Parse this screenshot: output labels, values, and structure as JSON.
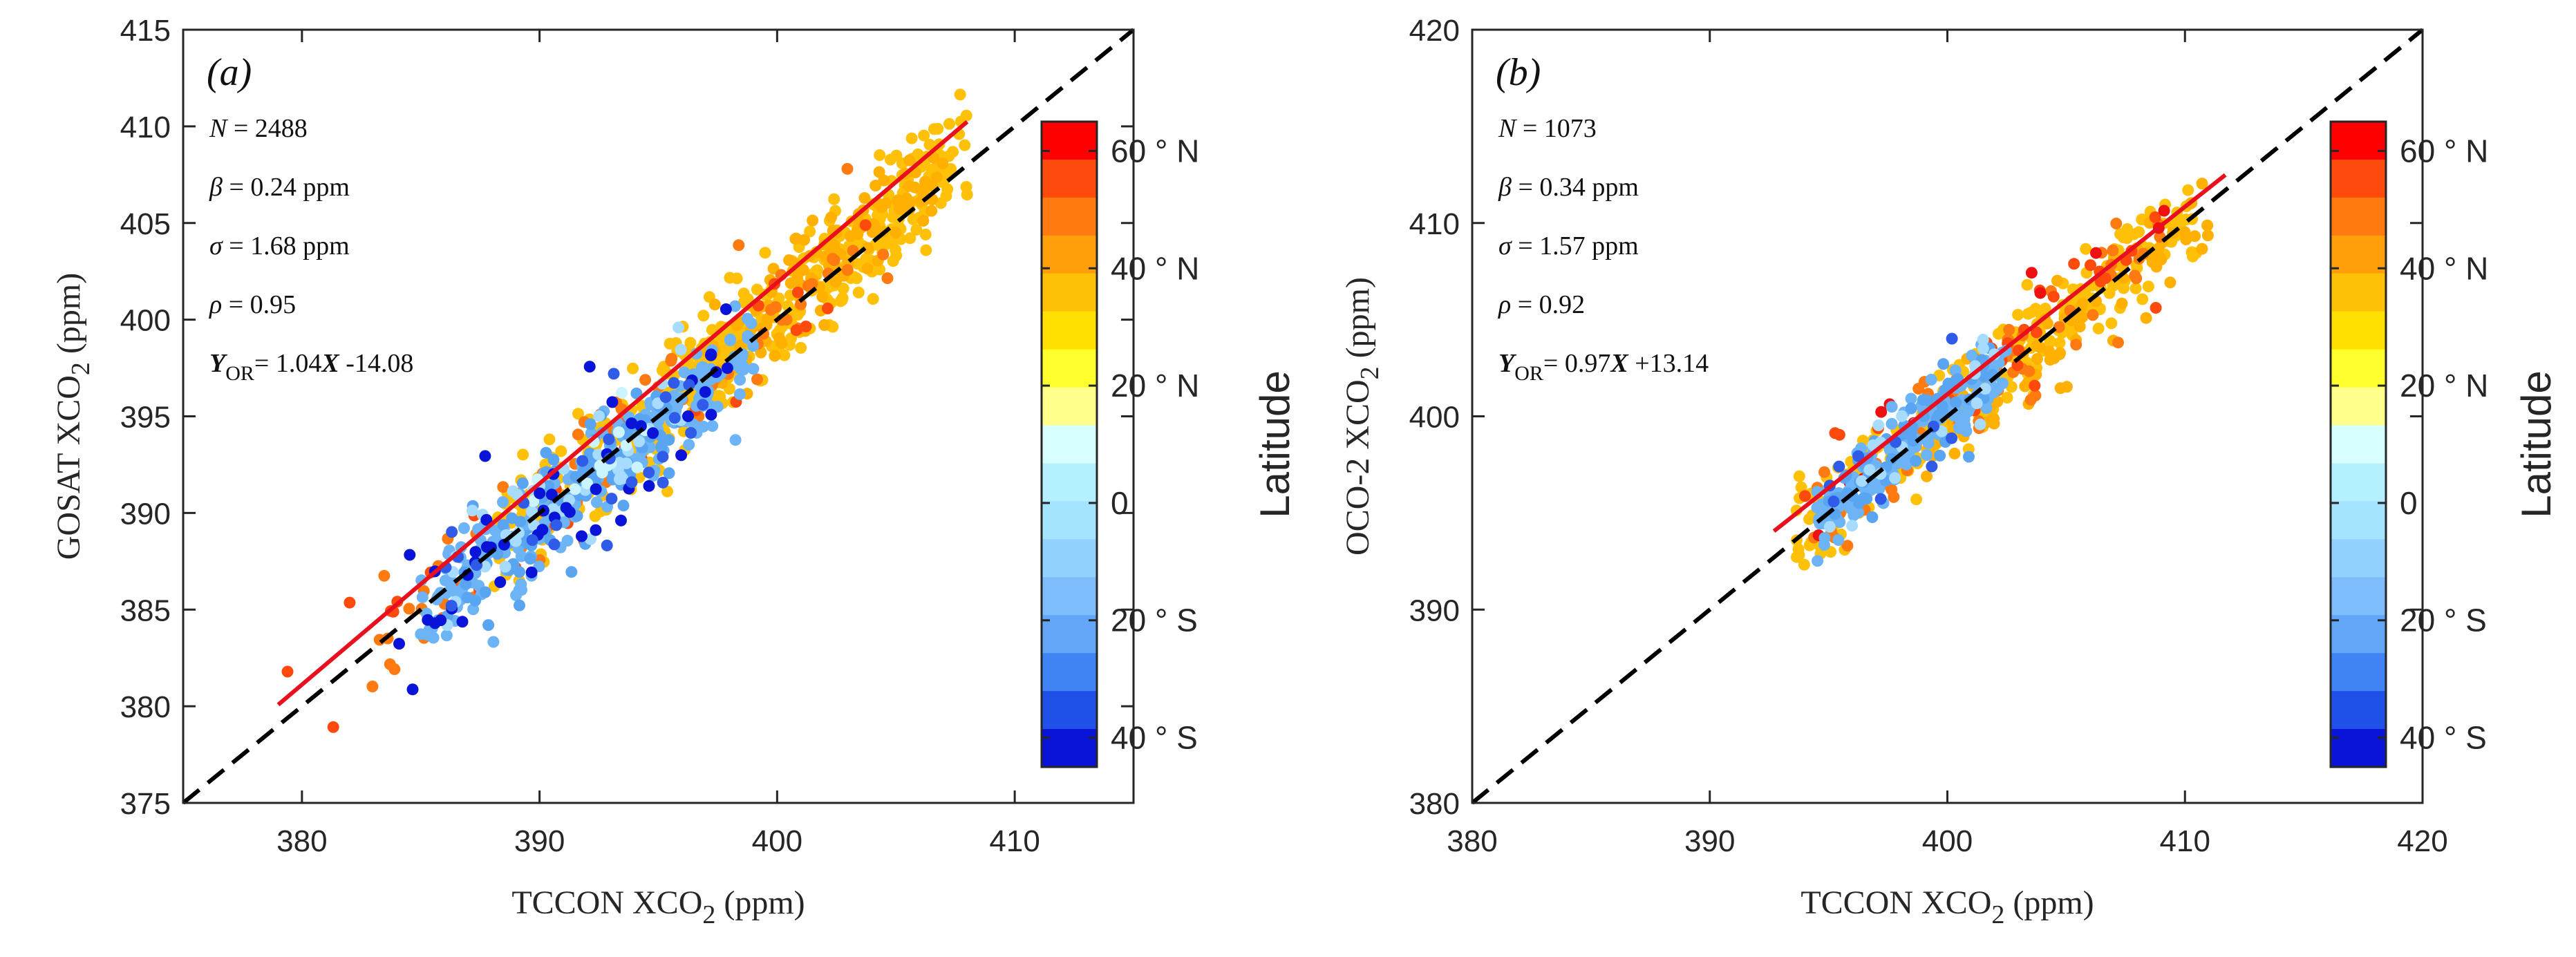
{
  "chart_data": [
    {
      "type": "scatter",
      "panel_label": "(a)",
      "xlabel": "TCCON XCO",
      "xlabel_sub": "2",
      "xlabel_unit": " (ppm)",
      "ylabel": "GOSAT XCO",
      "ylabel_sub": "2",
      "ylabel_unit": " (ppm)",
      "xlim": [
        375,
        415
      ],
      "ylim": [
        375,
        415
      ],
      "xticks": [
        380,
        390,
        400,
        410
      ],
      "yticks": [
        375,
        380,
        385,
        390,
        395,
        400,
        405,
        410,
        415
      ],
      "stats": {
        "n_sym": "N",
        "n_val": " = 2488",
        "beta_sym": "β",
        "beta_val": " = 0.24 ppm",
        "sigma_sym": "σ",
        "sigma_val": " = 1.68 ppm",
        "rho_sym": "ρ",
        "rho_val": " = 0.95",
        "y_sym": "Y",
        "y_sub": "OR",
        "y_eq_a": "= 1.04",
        "x_sym": "X",
        "y_eq_b": " -14.08"
      },
      "regression": {
        "slope": 1.04,
        "intercept": -14.08,
        "x_range": [
          379,
          408
        ],
        "color": "#e8101e"
      },
      "one_to_one_line": {
        "range": [
          375,
          415
        ],
        "color": "#000000"
      },
      "point_count": 2488,
      "approx_groups": [
        {
          "lat_band": "40-45 N",
          "x_range": [
            382,
            408
          ],
          "color": "#ffc107",
          "share": "majority, upper-right"
        },
        {
          "lat_band": "20-40 S",
          "x_range": [
            384,
            400
          ],
          "color": "#6cb4f5",
          "share": "central band"
        },
        {
          "lat_band": "40 S",
          "x_range": [
            384,
            398
          ],
          "color": "#0a14d8",
          "share": "lower-left"
        },
        {
          "lat_band": "45-60 N",
          "x_range": [
            379,
            404
          ],
          "color": "#ff6a13",
          "share": "scattered"
        }
      ]
    },
    {
      "type": "scatter",
      "panel_label": "(b)",
      "xlabel": "TCCON XCO",
      "xlabel_sub": "2",
      "xlabel_unit": " (ppm)",
      "ylabel": "OCO-2 XCO",
      "ylabel_sub": "2",
      "ylabel_unit": " (ppm)",
      "xlim": [
        380,
        420
      ],
      "ylim": [
        380,
        420
      ],
      "xticks": [
        380,
        390,
        400,
        410,
        420
      ],
      "yticks": [
        380,
        390,
        400,
        410,
        420
      ],
      "stats": {
        "n_sym": "N",
        "n_val": " = 1073",
        "beta_sym": "β",
        "beta_val": " = 0.34 ppm",
        "sigma_sym": "σ",
        "sigma_val": " = 1.57 ppm",
        "rho_sym": "ρ",
        "rho_val": " = 0.92",
        "y_sym": "Y",
        "y_sub": "OR",
        "y_eq_a": "= 0.97",
        "x_sym": "X",
        "y_eq_b": " +13.14"
      },
      "regression": {
        "slope": 0.97,
        "intercept": 13.14,
        "x_range": [
          392.7,
          411.7
        ],
        "color": "#e8101e"
      },
      "one_to_one_line": {
        "range": [
          380,
          420
        ],
        "color": "#000000"
      },
      "point_count": 1073,
      "approx_groups": [
        {
          "lat_band": "40-45 N",
          "x_range": [
            393,
            412
          ],
          "color": "#ffc107",
          "share": "majority"
        },
        {
          "lat_band": "20-40 S",
          "x_range": [
            394,
            403
          ],
          "color": "#6cb4f5",
          "share": "central cluster"
        },
        {
          "lat_band": "45-60 N",
          "x_range": [
            393,
            410
          ],
          "color": "#ff6a13",
          "share": "scattered"
        },
        {
          "lat_band": "60 N",
          "x_range": [
            394,
            410
          ],
          "color": "#ee1111",
          "share": "few"
        }
      ]
    }
  ],
  "colorbar": {
    "title": "Latitude",
    "tick_labels": [
      "60 ° N",
      "40 ° N",
      "20 ° N",
      "0",
      "20 ° S",
      "40 ° S"
    ],
    "tick_values": [
      60,
      40,
      20,
      0,
      -20,
      -40
    ],
    "range": [
      -45,
      65
    ],
    "colors_top_to_bottom": [
      "#ff0000",
      "#ff4a0d",
      "#ff7a10",
      "#ffa00a",
      "#ffc107",
      "#ffe000",
      "#ffff2d",
      "#ffff8a",
      "#d8ffff",
      "#b4f0ff",
      "#a4e4ff",
      "#92d2ff",
      "#7ebdfb",
      "#62a6f8",
      "#3f83f5",
      "#1f50e8",
      "#0a14d8"
    ]
  }
}
